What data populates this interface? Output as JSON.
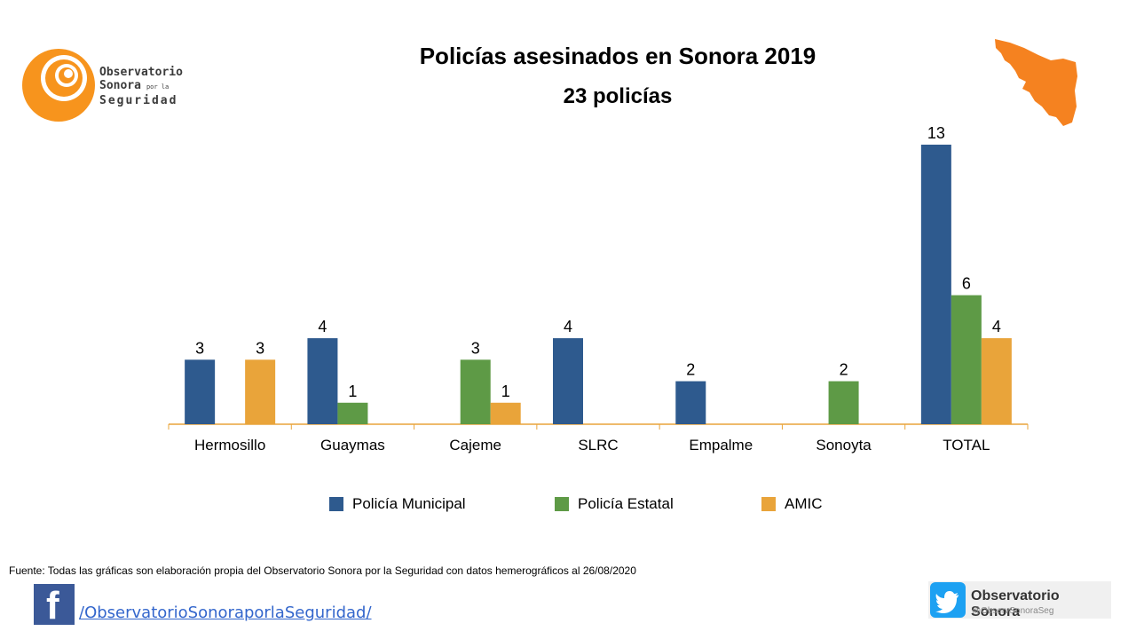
{
  "header": {
    "title": "Policías asesinados en Sonora 2019",
    "subtitle": "23 policías"
  },
  "logo": {
    "line1": "Observatorio",
    "line2": "Sonora",
    "line2_small": "por la",
    "line3": "Seguridad",
    "color": "#f7941d"
  },
  "footer": {
    "source": "Fuente: Todas las gráficas son elaboración propia del Observatorio Sonora por la Seguridad con datos hemerográficos al 26/08/2020",
    "facebook_link": "/ObservatorioSonoraporlaSeguridad/",
    "twitter_name": "Observatorio Sonora",
    "twitter_handle": "@ObservSonoraSeg"
  },
  "icons": [
    "observatorio-logo",
    "sonora-map-icon",
    "facebook-icon",
    "twitter-icon"
  ],
  "chart_data": {
    "type": "bar",
    "categories": [
      "Hermosillo",
      "Guaymas",
      "Cajeme",
      "SLRC",
      "Empalme",
      "Sonoyta",
      "TOTAL"
    ],
    "series": [
      {
        "name": "Policía Municipal",
        "color": "#2e5a8e",
        "values": [
          3,
          4,
          null,
          4,
          2,
          null,
          13
        ]
      },
      {
        "name": "Policía Estatal",
        "color": "#5e9a46",
        "values": [
          null,
          1,
          3,
          null,
          null,
          2,
          6
        ]
      },
      {
        "name": "AMIC",
        "color": "#e9a43a",
        "values": [
          3,
          null,
          1,
          null,
          null,
          null,
          4
        ]
      }
    ],
    "ylim": [
      0,
      13
    ],
    "legend_position": "bottom",
    "grid": false,
    "axis_color": "#e9a43a"
  }
}
